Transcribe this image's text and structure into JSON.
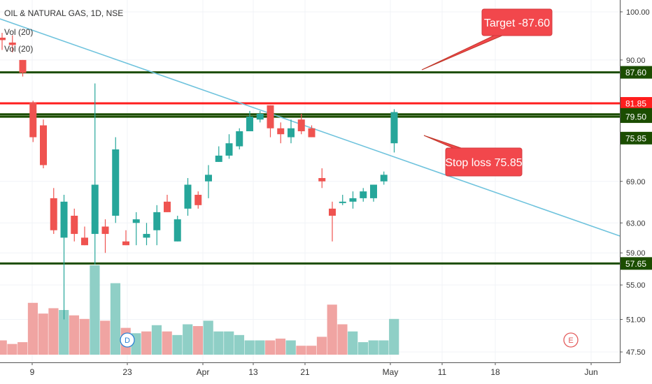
{
  "header": {
    "symbol": "OIL & NATURAL GAS, 1D, NSE",
    "vol1": "Vol (20)",
    "vol2": "Vol (20)"
  },
  "colors": {
    "up": "#26a69a",
    "down": "#ef5350",
    "vol_up": "#8fcfc6",
    "vol_down": "#f0a4a2",
    "level_green": "#1b4d00",
    "level_red": "#ff1e1e",
    "trend": "#6fc3dd",
    "callout": "#f2474c",
    "axis_text": "#333333"
  },
  "chart_data": {
    "type": "candlestick",
    "x_ticks": [
      "9",
      "23",
      "Apr",
      "13",
      "21",
      "May",
      "11",
      "18",
      "Jun"
    ],
    "y_ticks": [
      "100.00",
      "90.00",
      "69.00",
      "63.00",
      "59.00",
      "55.00",
      "51.00",
      "47.50"
    ],
    "ylim": [
      46.5,
      102
    ],
    "y_scale": "log",
    "levels": [
      {
        "value": 87.6,
        "label": "87.60",
        "color": "green"
      },
      {
        "value": 81.85,
        "label": "81.85",
        "color": "red"
      },
      {
        "value": 79.9,
        "label": "79.90",
        "color": "green"
      },
      {
        "value": 79.5,
        "label": "79.50",
        "color": "green"
      },
      {
        "value": 57.65,
        "label": "57.65",
        "color": "green"
      }
    ],
    "price_labels": [
      {
        "value": 75.85,
        "label": "75.85"
      }
    ],
    "annotations": [
      {
        "text": "Target -87.60"
      },
      {
        "text": "Stop loss 75.85"
      }
    ],
    "markers": [
      "D",
      "E"
    ],
    "candles": [
      {
        "o": 94.5,
        "h": 95.5,
        "l": 92.0,
        "c": 94.0
      },
      {
        "o": 93.5,
        "h": 95.0,
        "l": 91.5,
        "c": 93.0
      },
      {
        "o": 90.0,
        "h": 90.0,
        "l": 86.8,
        "c": 87.5
      },
      {
        "o": 82.0,
        "h": 82.3,
        "l": 75.2,
        "c": 76.0
      },
      {
        "o": 78.0,
        "h": 79.0,
        "l": 71.0,
        "c": 71.5
      },
      {
        "o": 66.5,
        "h": 68.0,
        "l": 61.5,
        "c": 62.0
      },
      {
        "o": 61.0,
        "h": 67.0,
        "l": 51.0,
        "c": 66.0
      },
      {
        "o": 64.0,
        "h": 65.0,
        "l": 60.5,
        "c": 61.5
      },
      {
        "o": 61.0,
        "h": 62.5,
        "l": 60.0,
        "c": 60.0
      },
      {
        "o": 61.5,
        "h": 85.5,
        "l": 57.5,
        "c": 68.5
      },
      {
        "o": 62.5,
        "h": 63.5,
        "l": 59.0,
        "c": 61.5
      },
      {
        "o": 64.0,
        "h": 76.0,
        "l": 63.0,
        "c": 74.0
      },
      {
        "o": 60.5,
        "h": 62.0,
        "l": 60.0,
        "c": 60.0
      },
      {
        "o": 63.0,
        "h": 64.5,
        "l": 60.0,
        "c": 63.5
      },
      {
        "o": 61.0,
        "h": 63.0,
        "l": 60.0,
        "c": 61.5
      },
      {
        "o": 62.0,
        "h": 65.5,
        "l": 60.0,
        "c": 64.5
      },
      {
        "o": 66.0,
        "h": 67.0,
        "l": 64.5,
        "c": 64.5
      },
      {
        "o": 60.5,
        "h": 64.0,
        "l": 60.5,
        "c": 63.5
      },
      {
        "o": 65.0,
        "h": 69.5,
        "l": 64.0,
        "c": 68.5
      },
      {
        "o": 67.0,
        "h": 67.5,
        "l": 65.0,
        "c": 65.5
      },
      {
        "o": 69.0,
        "h": 71.5,
        "l": 66.5,
        "c": 70.0
      },
      {
        "o": 72.0,
        "h": 74.5,
        "l": 72.0,
        "c": 73.0
      },
      {
        "o": 73.0,
        "h": 76.5,
        "l": 72.5,
        "c": 75.0
      },
      {
        "o": 74.5,
        "h": 77.5,
        "l": 74.0,
        "c": 77.0
      },
      {
        "o": 77.0,
        "h": 80.5,
        "l": 77.0,
        "c": 79.5
      },
      {
        "o": 79.0,
        "h": 80.5,
        "l": 78.5,
        "c": 80.0
      },
      {
        "o": 81.5,
        "h": 81.5,
        "l": 76.0,
        "c": 77.5
      },
      {
        "o": 77.5,
        "h": 78.5,
        "l": 75.0,
        "c": 76.5
      },
      {
        "o": 76.0,
        "h": 79.0,
        "l": 75.0,
        "c": 77.5
      },
      {
        "o": 79.0,
        "h": 80.0,
        "l": 76.5,
        "c": 77.0
      },
      {
        "o": 77.5,
        "h": 78.0,
        "l": 76.0,
        "c": 76.0
      },
      {
        "o": 69.5,
        "h": 71.0,
        "l": 68.0,
        "c": 69.0
      },
      {
        "o": 65.0,
        "h": 66.0,
        "l": 60.5,
        "c": 64.0
      },
      {
        "o": 66.0,
        "h": 67.0,
        "l": 65.5,
        "c": 66.0
      },
      {
        "o": 66.0,
        "h": 67.5,
        "l": 65.0,
        "c": 66.5
      },
      {
        "o": 66.5,
        "h": 68.0,
        "l": 66.0,
        "c": 67.5
      },
      {
        "o": 66.5,
        "h": 68.5,
        "l": 66.0,
        "c": 68.5
      },
      {
        "o": 69.0,
        "h": 70.5,
        "l": 68.5,
        "c": 70.0
      },
      {
        "o": 75.0,
        "h": 80.8,
        "l": 73.5,
        "c": 80.3
      }
    ],
    "volume": [
      {
        "v": 0.16,
        "up": false
      },
      {
        "v": 0.12,
        "up": false
      },
      {
        "v": 0.14,
        "up": false
      },
      {
        "v": 0.58,
        "up": false
      },
      {
        "v": 0.46,
        "up": false
      },
      {
        "v": 0.52,
        "up": false
      },
      {
        "v": 0.5,
        "up": true
      },
      {
        "v": 0.44,
        "up": false
      },
      {
        "v": 0.4,
        "up": false
      },
      {
        "v": 1.0,
        "up": true
      },
      {
        "v": 0.38,
        "up": false
      },
      {
        "v": 0.8,
        "up": true
      },
      {
        "v": 0.3,
        "up": false
      },
      {
        "v": 0.24,
        "up": true
      },
      {
        "v": 0.26,
        "up": false
      },
      {
        "v": 0.33,
        "up": true
      },
      {
        "v": 0.26,
        "up": false
      },
      {
        "v": 0.22,
        "up": true
      },
      {
        "v": 0.34,
        "up": true
      },
      {
        "v": 0.32,
        "up": false
      },
      {
        "v": 0.38,
        "up": true
      },
      {
        "v": 0.26,
        "up": true
      },
      {
        "v": 0.26,
        "up": true
      },
      {
        "v": 0.22,
        "up": true
      },
      {
        "v": 0.16,
        "up": true
      },
      {
        "v": 0.16,
        "up": true
      },
      {
        "v": 0.16,
        "up": false
      },
      {
        "v": 0.18,
        "up": false
      },
      {
        "v": 0.16,
        "up": true
      },
      {
        "v": 0.1,
        "up": false
      },
      {
        "v": 0.1,
        "up": false
      },
      {
        "v": 0.2,
        "up": false
      },
      {
        "v": 0.56,
        "up": false
      },
      {
        "v": 0.34,
        "up": false
      },
      {
        "v": 0.26,
        "up": true
      },
      {
        "v": 0.14,
        "up": true
      },
      {
        "v": 0.16,
        "up": true
      },
      {
        "v": 0.16,
        "up": true
      },
      {
        "v": 0.4,
        "up": true
      }
    ]
  }
}
